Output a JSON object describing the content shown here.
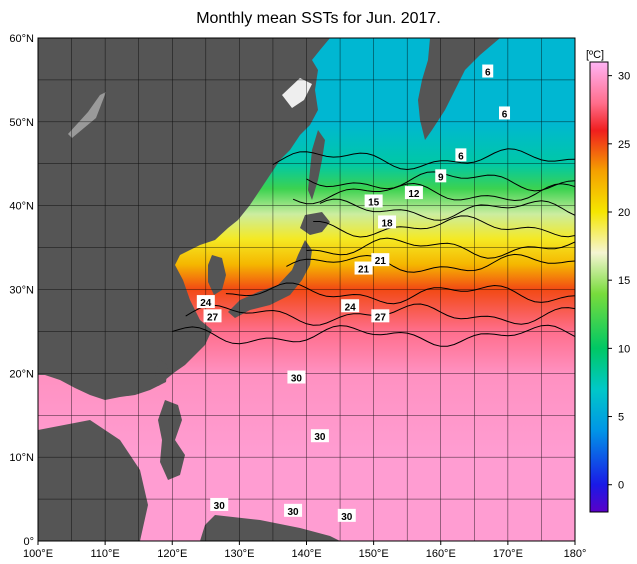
{
  "title": "Monthly mean SSTs for Jun. 2017.",
  "colorbar": {
    "unit": "[ºC]",
    "ticks": [
      "30",
      "25",
      "20",
      "15",
      "10",
      "5",
      "0"
    ],
    "tick_values": [
      30,
      25,
      20,
      15,
      10,
      5,
      0
    ],
    "range": [
      -2,
      31
    ],
    "stops": [
      {
        "v": -2,
        "c": "#5a00c8"
      },
      {
        "v": 0,
        "c": "#1a1ae6"
      },
      {
        "v": 4,
        "c": "#0096e6"
      },
      {
        "v": 7,
        "c": "#00c8c8"
      },
      {
        "v": 10,
        "c": "#00c864"
      },
      {
        "v": 14,
        "c": "#78dc3c"
      },
      {
        "v": 17,
        "c": "#f5f5d2"
      },
      {
        "v": 20,
        "c": "#f5e600"
      },
      {
        "v": 23,
        "c": "#f5a000"
      },
      {
        "v": 26,
        "c": "#f01e1e"
      },
      {
        "v": 28,
        "c": "#ff6e8c"
      },
      {
        "v": 31,
        "c": "#ffb4f5"
      }
    ]
  },
  "axes": {
    "x_ticks": [
      "100°E",
      "110°E",
      "120°E",
      "130°E",
      "140°E",
      "150°E",
      "160°E",
      "170°E",
      "180°"
    ],
    "y_ticks": [
      "60°N",
      "50°N",
      "40°N",
      "30°N",
      "20°N",
      "10°N",
      "0°"
    ],
    "lon_range": [
      100,
      180
    ],
    "lat_range": [
      0,
      60
    ]
  },
  "colors": {
    "land": "#555555",
    "missing": "#ffffff",
    "grid": "#000000"
  },
  "contour_labels": [
    {
      "text": "6",
      "lon": 167,
      "lat": 56
    },
    {
      "text": "6",
      "lon": 169.5,
      "lat": 51
    },
    {
      "text": "6",
      "lon": 163,
      "lat": 46
    },
    {
      "text": "9",
      "lon": 160,
      "lat": 43.5
    },
    {
      "text": "12",
      "lon": 156,
      "lat": 41.5
    },
    {
      "text": "15",
      "lon": 150,
      "lat": 40.5
    },
    {
      "text": "18",
      "lon": 152,
      "lat": 38
    },
    {
      "text": "21",
      "lon": 151,
      "lat": 33.5
    },
    {
      "text": "21",
      "lon": 148.5,
      "lat": 32.5
    },
    {
      "text": "24",
      "lon": 125,
      "lat": 28.5
    },
    {
      "text": "24",
      "lon": 146.5,
      "lat": 28
    },
    {
      "text": "27",
      "lon": 126,
      "lat": 26.8
    },
    {
      "text": "27",
      "lon": 151,
      "lat": 26.8
    },
    {
      "text": "30",
      "lon": 138.5,
      "lat": 19.5
    },
    {
      "text": "30",
      "lon": 142,
      "lat": 12.5
    },
    {
      "text": "30",
      "lon": 127,
      "lat": 4.3
    },
    {
      "text": "30",
      "lon": 138,
      "lat": 3.6
    },
    {
      "text": "30",
      "lon": 146,
      "lat": 3
    }
  ],
  "chart_data": {
    "type": "heatmap",
    "title": "Monthly mean SSTs for Jun. 2017.",
    "unit": "[ºC]",
    "x_range": [
      100,
      180
    ],
    "y_range": [
      0,
      60
    ],
    "latitude_profile_sst": [
      {
        "lat": 0,
        "sst": 30
      },
      {
        "lat": 10,
        "sst": 30
      },
      {
        "lat": 20,
        "sst": 29.5
      },
      {
        "lat": 25,
        "sst": 28
      },
      {
        "lat": 30,
        "sst": 25
      },
      {
        "lat": 33,
        "sst": 22
      },
      {
        "lat": 36,
        "sst": 19.5
      },
      {
        "lat": 39,
        "sst": 16
      },
      {
        "lat": 42,
        "sst": 12
      },
      {
        "lat": 45,
        "sst": 8
      },
      {
        "lat": 50,
        "sst": 6
      },
      {
        "lat": 55,
        "sst": 6
      },
      {
        "lat": 60,
        "sst": 6
      }
    ]
  }
}
